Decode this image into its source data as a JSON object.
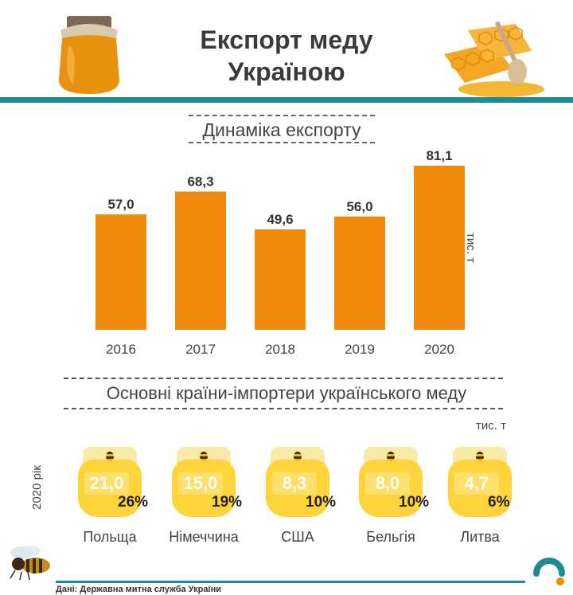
{
  "title_line1": "Експорт меду",
  "title_line2": "Україною",
  "section1_title": "Динаміка експорту",
  "section2_title": "Основні країни-імпортери українського меду",
  "unit_bar": "тис. т",
  "unit_importers": "тис. т",
  "year_label": "2020 рік",
  "source": "Дані: Державна митна служба України",
  "colors": {
    "bar": "#f08a0c",
    "accent_line": "#1f8a93",
    "jar_honey": "#ffd43a",
    "jar_lid": "#fbe9a7"
  },
  "icons": [
    "honey-jar-image",
    "honeycomb-image",
    "bee-image",
    "logo"
  ],
  "chart_data": [
    {
      "type": "bar",
      "title": "Динаміка експорту",
      "categories": [
        "2016",
        "2017",
        "2018",
        "2019",
        "2020"
      ],
      "values": [
        57.0,
        68.3,
        49.6,
        56.0,
        81.1
      ],
      "value_labels": [
        "57,0",
        "68,3",
        "49,6",
        "56,0",
        "81,1"
      ],
      "ylabel": "тис. т",
      "ylim": [
        0,
        81.1
      ]
    },
    {
      "type": "table",
      "title": "Основні країни-імпортери українського меду",
      "rows": [
        {
          "country": "Польща",
          "value": 21.0,
          "value_label": "21,0",
          "share": "26%"
        },
        {
          "country": "Німеччина",
          "value": 15.0,
          "value_label": "15,0",
          "share": "19%"
        },
        {
          "country": "США",
          "value": 8.3,
          "value_label": "8,3",
          "share": "10%"
        },
        {
          "country": "Бельгія",
          "value": 8.0,
          "value_label": "8,0",
          "share": "10%"
        },
        {
          "country": "Литва",
          "value": 4.7,
          "value_label": "4,7",
          "share": "6%"
        }
      ],
      "unit": "тис. т",
      "year": "2020 рік"
    }
  ]
}
